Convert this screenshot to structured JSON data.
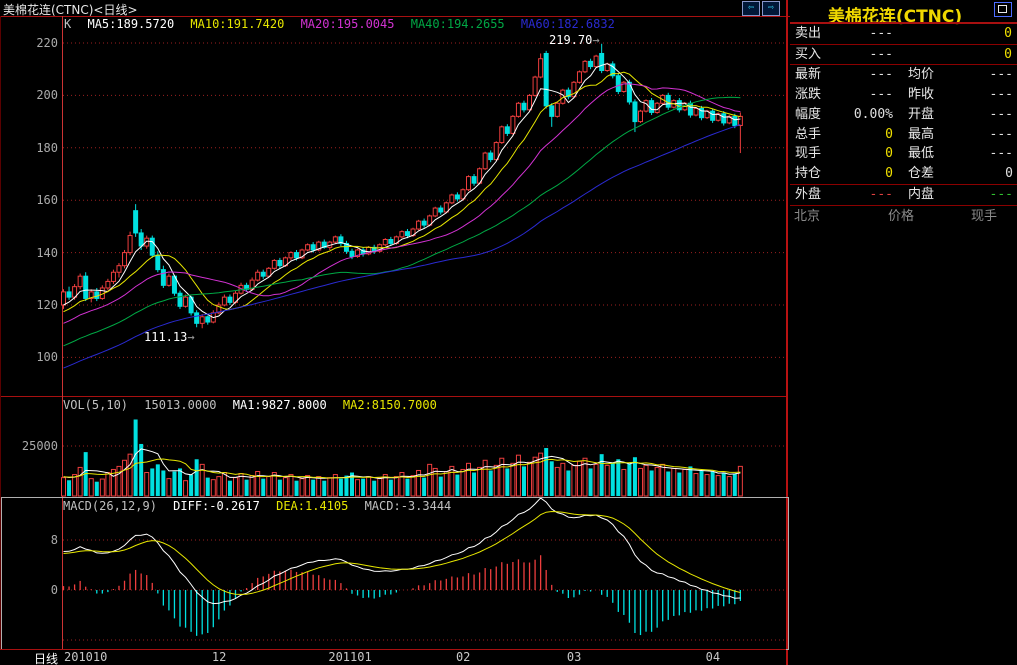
{
  "window": {
    "title": "美棉花连(CTNC)<日线>",
    "period_label": "日线"
  },
  "toolbar": {
    "prev_label": "⇦",
    "next_label": "⇨"
  },
  "icons": {
    "prev": "left-outline-arrow",
    "next": "right-outline-arrow",
    "maximize": "css-square-in-square"
  },
  "kline_header": {
    "k": "K",
    "ma5": "MA5:189.5720",
    "ma10": "MA10:191.7420",
    "ma20": "MA20:195.0045",
    "ma40": "MA40:194.2655",
    "ma60": "MA60:182.6832"
  },
  "volume_header": {
    "name": "VOL(5,10)",
    "value": "15013.0000",
    "ma1": "MA1:9827.8000",
    "ma2": "MA2:8150.7000"
  },
  "macd_header": {
    "name": "MACD(26,12,9)",
    "diff": "DIFF:-0.2617",
    "dea": "DEA:1.4105",
    "macd": "MACD:-3.3444"
  },
  "annotations": {
    "high": "219.70",
    "low": "111.13",
    "arrow": "→"
  },
  "y_axis": {
    "price_ticks": [
      220,
      200,
      180,
      160,
      140,
      120,
      100
    ],
    "volume_tick": "25000",
    "macd_ticks": [
      8,
      0
    ]
  },
  "x_axis": {
    "ticks": [
      {
        "label": "201010",
        "index": 0
      },
      {
        "label": "12",
        "index": 28
      },
      {
        "label": "201101",
        "index": 49
      },
      {
        "label": "02",
        "index": 72
      },
      {
        "label": "03",
        "index": 92
      },
      {
        "label": "04",
        "index": 117
      }
    ]
  },
  "quote_panel": {
    "title": "美棉花连(CTNC)",
    "order_rows": [
      {
        "id": "sell",
        "label": "卖出",
        "price": "---",
        "qty": "0"
      },
      {
        "id": "buy",
        "label": "买入",
        "price": "---",
        "qty": "0"
      }
    ],
    "stat_rows": [
      {
        "id": "latest-avgprice",
        "l1": "最新",
        "v1": "---",
        "c1": "white",
        "l2": "均价",
        "v2": "---",
        "c2": "white"
      },
      {
        "id": "change-prevclose",
        "l1": "涨跌",
        "v1": "---",
        "c1": "white",
        "l2": "昨收",
        "v2": "---",
        "c2": "white"
      },
      {
        "id": "range-open",
        "l1": "幅度",
        "v1": "0.00%",
        "c1": "white",
        "l2": "开盘",
        "v2": "---",
        "c2": "white"
      },
      {
        "id": "totalvol-high",
        "l1": "总手",
        "v1": "0",
        "c1": "yellow",
        "l2": "最高",
        "v2": "---",
        "c2": "white"
      },
      {
        "id": "curvol-low",
        "l1": "现手",
        "v1": "0",
        "c1": "yellow",
        "l2": "最低",
        "v2": "---",
        "c2": "white"
      },
      {
        "id": "openint-delta",
        "l1": "持仓",
        "v1": "0",
        "c1": "yellow",
        "l2": "仓差",
        "v2": "0",
        "c2": "white"
      },
      {
        "id": "outer-inner",
        "l1": "外盘",
        "v1": "---",
        "c1": "red",
        "l2": "内盘",
        "v2": "---",
        "c2": "green"
      }
    ],
    "tape_headers": [
      "北京",
      "价格",
      "现手"
    ]
  },
  "colors": {
    "up": "#ee3e3e",
    "down": "#00e0e0",
    "ma5": "#ffffff",
    "ma10": "#e6e600",
    "ma20": "#d232d2",
    "ma40": "#00a845",
    "ma60": "#2a2ad0",
    "grid": "#9b2020",
    "border": "#a81010",
    "accent_yellow": "#f0d800",
    "diff_line": "#ffffff",
    "dea_line": "#e6e600"
  },
  "chart_data": {
    "type": "candlestick",
    "title": "美棉花连(CTNC) 日线",
    "instrument": "美棉花连",
    "code": "CTNC",
    "period": "日线",
    "price_gridlines": [
      220,
      200,
      180,
      160,
      140,
      120,
      100
    ],
    "volume_gridline": 25000,
    "macd_gridlines": [
      8,
      0,
      -8
    ],
    "high_annotation": 219.7,
    "low_annotation": 111.13,
    "candles": [
      [
        120,
        126,
        118.5,
        125
      ],
      [
        125,
        127,
        122,
        123
      ],
      [
        123,
        128,
        122,
        127
      ],
      [
        127,
        132,
        126,
        131
      ],
      [
        131,
        132.5,
        121.5,
        122.5
      ],
      [
        122.5,
        126,
        121,
        125
      ],
      [
        125,
        126.5,
        121.5,
        122.5
      ],
      [
        122.5,
        127.5,
        122,
        126.5
      ],
      [
        126.5,
        130,
        125.5,
        129
      ],
      [
        129,
        133.5,
        128,
        132.5
      ],
      [
        132.5,
        136,
        130.5,
        135
      ],
      [
        135,
        141,
        134,
        140
      ],
      [
        140,
        148,
        139,
        146.5
      ],
      [
        156,
        158.5,
        146,
        147.5
      ],
      [
        147.5,
        149,
        141,
        142.5
      ],
      [
        142.5,
        146.5,
        141.5,
        145.5
      ],
      [
        145.5,
        146.5,
        138,
        139
      ],
      [
        139,
        140.5,
        132.5,
        133.5
      ],
      [
        133.5,
        135,
        126.5,
        127.5
      ],
      [
        127.5,
        132,
        127,
        131
      ],
      [
        131,
        131.5,
        123.5,
        124.5
      ],
      [
        124.5,
        125.5,
        118.5,
        119.5
      ],
      [
        119.5,
        124,
        119,
        123
      ],
      [
        123,
        123.5,
        116,
        117
      ],
      [
        117,
        118,
        111.5,
        113
      ],
      [
        113,
        116.5,
        111.13,
        115.5
      ],
      [
        115.5,
        116,
        112.5,
        113.5
      ],
      [
        113.5,
        118,
        113,
        117
      ],
      [
        117,
        121,
        116.5,
        120
      ],
      [
        120,
        124,
        119.5,
        123
      ],
      [
        123,
        124,
        120,
        121
      ],
      [
        121,
        125.5,
        120.5,
        124.5
      ],
      [
        124.5,
        128.5,
        124,
        127.5
      ],
      [
        127.5,
        128.5,
        125,
        126
      ],
      [
        126,
        130.5,
        125.5,
        129.5
      ],
      [
        129.5,
        133.5,
        129,
        132.5
      ],
      [
        132.5,
        133.5,
        130,
        131
      ],
      [
        131,
        134.5,
        130.5,
        134
      ],
      [
        134,
        137.5,
        133.5,
        137
      ],
      [
        137,
        138,
        134,
        135
      ],
      [
        135,
        138.5,
        134.5,
        138
      ],
      [
        138,
        140.5,
        137,
        140
      ],
      [
        140,
        141,
        137,
        138
      ],
      [
        138,
        141.5,
        137.5,
        141
      ],
      [
        141,
        143.5,
        140.5,
        143
      ],
      [
        143,
        144,
        140,
        141
      ],
      [
        141,
        144.5,
        140.5,
        144
      ],
      [
        144,
        145,
        141.5,
        142
      ],
      [
        142,
        144.5,
        141,
        144
      ],
      [
        144,
        146.5,
        143.5,
        146
      ],
      [
        146,
        147,
        142.5,
        143.5
      ],
      [
        143.5,
        144.5,
        139.5,
        140.5
      ],
      [
        140.5,
        141.5,
        137.5,
        138.5
      ],
      [
        138.5,
        141.5,
        138,
        141
      ],
      [
        141,
        142,
        138.5,
        139.5
      ],
      [
        139.5,
        142.5,
        139,
        142
      ],
      [
        142,
        143,
        139.5,
        140.5
      ],
      [
        140.5,
        143.5,
        140,
        143
      ],
      [
        143,
        145.5,
        142.5,
        145
      ],
      [
        145,
        146,
        142.5,
        143.5
      ],
      [
        143.5,
        146.5,
        143,
        146
      ],
      [
        146,
        148.5,
        145.5,
        148
      ],
      [
        148,
        149,
        145.5,
        146.5
      ],
      [
        146.5,
        149.5,
        146,
        149
      ],
      [
        149,
        152.5,
        148.5,
        152
      ],
      [
        152,
        153,
        149.5,
        150.5
      ],
      [
        150.5,
        154.5,
        150,
        154
      ],
      [
        154,
        157.5,
        153.5,
        157
      ],
      [
        157,
        158,
        154.5,
        155.5
      ],
      [
        155.5,
        159.5,
        155,
        159
      ],
      [
        159,
        162.5,
        158.5,
        162
      ],
      [
        162,
        163,
        159.5,
        160.5
      ],
      [
        160.5,
        164.5,
        160,
        164
      ],
      [
        164,
        169.5,
        163.5,
        169
      ],
      [
        169,
        170,
        165.5,
        166.5
      ],
      [
        166.5,
        172.5,
        166,
        172
      ],
      [
        172,
        178.5,
        171.5,
        178
      ],
      [
        178,
        179,
        174.5,
        175.5
      ],
      [
        175.5,
        182.5,
        175,
        182
      ],
      [
        182,
        188.5,
        181.5,
        188
      ],
      [
        188,
        189,
        184.5,
        185.5
      ],
      [
        185.5,
        192.5,
        185,
        192
      ],
      [
        192,
        197.5,
        191.5,
        197
      ],
      [
        197,
        198,
        193.5,
        194.5
      ],
      [
        194.5,
        200.5,
        194,
        200
      ],
      [
        200,
        207.5,
        199.5,
        207
      ],
      [
        207,
        216,
        206.5,
        214
      ],
      [
        216,
        217,
        195,
        196
      ],
      [
        196,
        197,
        188,
        192
      ],
      [
        192,
        197.5,
        191.5,
        197
      ],
      [
        197,
        202.5,
        196.5,
        202
      ],
      [
        202,
        203,
        198.5,
        199.5
      ],
      [
        199.5,
        205.5,
        199,
        205
      ],
      [
        205,
        209.5,
        204.5,
        209
      ],
      [
        209,
        213.5,
        208.5,
        213
      ],
      [
        213,
        214,
        210,
        211
      ],
      [
        211,
        215.5,
        210.5,
        215
      ],
      [
        216,
        219.7,
        208.5,
        209.5
      ],
      [
        209.5,
        212.5,
        209,
        212
      ],
      [
        212,
        213,
        206.5,
        207.5
      ],
      [
        207.5,
        208.5,
        200.5,
        201.5
      ],
      [
        201.5,
        205.5,
        201,
        205
      ],
      [
        205,
        206,
        196.5,
        197.5
      ],
      [
        197.5,
        198.5,
        186,
        190
      ],
      [
        190,
        194.5,
        189.5,
        194
      ],
      [
        194,
        198.5,
        193.5,
        198
      ],
      [
        198,
        199,
        192.5,
        193.5
      ],
      [
        193.5,
        197.5,
        193,
        197
      ],
      [
        197,
        200.5,
        196.5,
        200
      ],
      [
        200,
        201,
        194.5,
        195.5
      ],
      [
        195.5,
        198.5,
        195,
        198
      ],
      [
        198,
        199,
        193.5,
        194.5
      ],
      [
        194.5,
        197.5,
        194,
        197
      ],
      [
        197,
        198,
        191.5,
        192.5
      ],
      [
        192.5,
        195.5,
        192,
        195
      ],
      [
        195,
        196,
        190.5,
        191.5
      ],
      [
        191.5,
        194.5,
        191,
        194
      ],
      [
        194,
        195,
        189.5,
        190.5
      ],
      [
        190.5,
        193.5,
        190,
        193
      ],
      [
        193,
        194,
        188.5,
        189.5
      ],
      [
        189.5,
        192.5,
        189,
        192
      ],
      [
        192,
        193,
        187.5,
        188.5
      ],
      [
        188.5,
        193.5,
        178,
        192
      ]
    ],
    "volumes": [
      9500,
      8200,
      11000,
      14500,
      22000,
      9000,
      7500,
      8800,
      12000,
      13500,
      15000,
      18000,
      21000,
      38000,
      26000,
      12000,
      14000,
      16000,
      13000,
      9000,
      12500,
      14000,
      8000,
      11000,
      18500,
      16000,
      9500,
      8500,
      10000,
      12000,
      8000,
      9500,
      11500,
      8500,
      10500,
      12500,
      9000,
      10000,
      12000,
      8500,
      9500,
      11000,
      8000,
      9000,
      10500,
      8500,
      10000,
      8000,
      9500,
      11000,
      9000,
      10500,
      12000,
      8500,
      9000,
      10000,
      8000,
      9500,
      11000,
      8500,
      10000,
      12000,
      9000,
      10500,
      13000,
      9500,
      16000,
      14000,
      10000,
      12500,
      15000,
      11000,
      13500,
      16500,
      12000,
      14500,
      18000,
      13000,
      15500,
      19000,
      14000,
      16500,
      20500,
      15000,
      17000,
      19500,
      21500,
      24000,
      17500,
      14500,
      16500,
      13000,
      15500,
      17500,
      19000,
      14000,
      16000,
      21000,
      15500,
      17000,
      18500,
      13500,
      16500,
      19500,
      14000,
      15500,
      13000,
      14500,
      16000,
      12500,
      14000,
      12000,
      13500,
      15000,
      11500,
      13000,
      11000,
      12500,
      10500,
      12000,
      10000,
      11500,
      15013
    ],
    "indicators": {
      "kline_mas": [
        "MA5",
        "MA10",
        "MA20",
        "MA40",
        "MA60"
      ],
      "volume_mas": [
        "MA1(5)",
        "MA2(10)"
      ],
      "macd_params": "MACD(26,12,9)"
    }
  }
}
